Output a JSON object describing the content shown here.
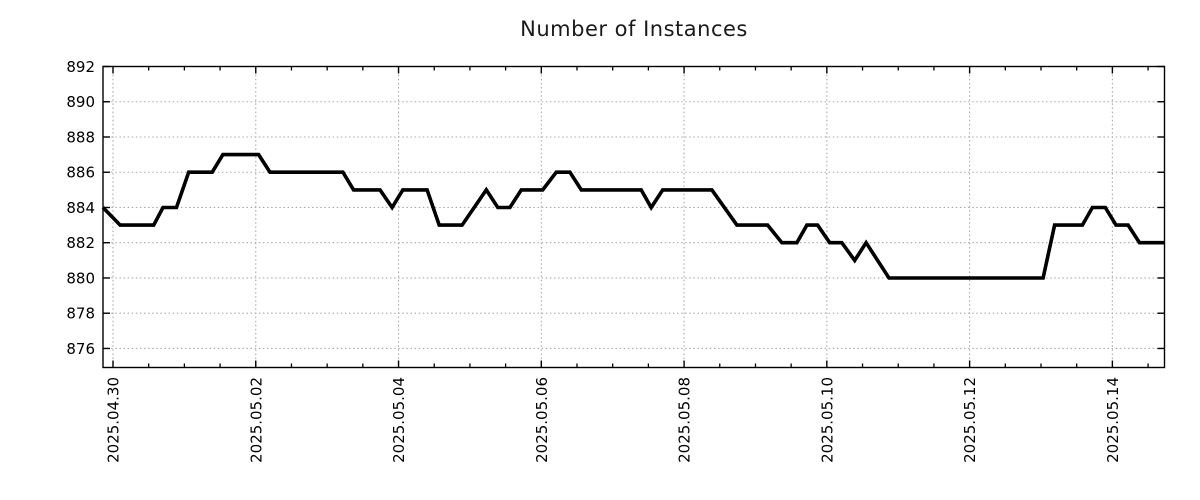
{
  "title": "Number of Instances",
  "colors": {
    "background": "#ffffff",
    "line": "#000000",
    "axis": "#000000",
    "grid": "#a9a9a9",
    "text": "#000000",
    "title_text": "#1a1a1a"
  },
  "chart_data": {
    "type": "line",
    "title": "Number of Instances",
    "xlabel": "",
    "ylabel": "",
    "legend": "none",
    "grid": true,
    "series_name": "instances",
    "x_unit": "days since 2025-04-30 00:00",
    "xlim": [
      -0.14,
      14.73
    ],
    "ylim": [
      874.92,
      892
    ],
    "y_ticks": [
      876,
      878,
      880,
      882,
      884,
      886,
      888,
      890,
      892
    ],
    "x_ticks_major": [
      {
        "t": 0,
        "label": "2025.04.30"
      },
      {
        "t": 2,
        "label": "2025.05.02"
      },
      {
        "t": 4,
        "label": "2025.05.04"
      },
      {
        "t": 6,
        "label": "2025.05.06"
      },
      {
        "t": 8,
        "label": "2025.05.08"
      },
      {
        "t": 10,
        "label": "2025.05.10"
      },
      {
        "t": 12,
        "label": "2025.05.12"
      },
      {
        "t": 14,
        "label": "2025.05.14"
      }
    ],
    "x_minor_step_days": 0.5,
    "points": [
      [
        -0.14,
        884
      ],
      [
        0.1,
        883
      ],
      [
        0.57,
        883
      ],
      [
        0.7,
        884
      ],
      [
        0.89,
        884
      ],
      [
        1.06,
        886
      ],
      [
        1.39,
        886
      ],
      [
        1.54,
        887
      ],
      [
        2.04,
        887
      ],
      [
        2.2,
        886
      ],
      [
        3.22,
        886
      ],
      [
        3.37,
        885
      ],
      [
        3.74,
        885
      ],
      [
        3.91,
        884
      ],
      [
        4.06,
        885
      ],
      [
        4.4,
        885
      ],
      [
        4.57,
        883
      ],
      [
        4.89,
        883
      ],
      [
        5.23,
        885
      ],
      [
        5.39,
        884
      ],
      [
        5.56,
        884
      ],
      [
        5.72,
        885
      ],
      [
        6.02,
        885
      ],
      [
        6.21,
        886
      ],
      [
        6.4,
        886
      ],
      [
        6.56,
        885
      ],
      [
        7.4,
        885
      ],
      [
        7.54,
        884
      ],
      [
        7.7,
        885
      ],
      [
        8.39,
        885
      ],
      [
        8.74,
        883
      ],
      [
        9.17,
        883
      ],
      [
        9.37,
        882
      ],
      [
        9.58,
        882
      ],
      [
        9.72,
        883
      ],
      [
        9.87,
        883
      ],
      [
        10.04,
        882
      ],
      [
        10.21,
        882
      ],
      [
        10.39,
        881
      ],
      [
        10.55,
        882
      ],
      [
        10.87,
        880
      ],
      [
        13.03,
        880
      ],
      [
        13.19,
        883
      ],
      [
        13.58,
        883
      ],
      [
        13.72,
        884
      ],
      [
        13.9,
        884
      ],
      [
        14.05,
        883
      ],
      [
        14.22,
        883
      ],
      [
        14.38,
        882
      ],
      [
        14.73,
        882
      ]
    ]
  }
}
